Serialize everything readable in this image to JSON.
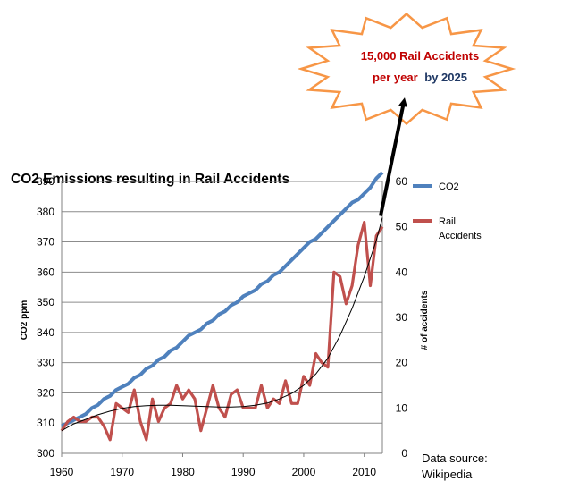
{
  "callout": {
    "line1": "15,000 Rail Accidents",
    "line2_part1": "per year",
    "line2_part2": "by 2025"
  },
  "source_note": {
    "line1": "Data source:",
    "line2": "Wikipedia"
  },
  "colors": {
    "co2": "#4f81bd",
    "accidents": "#c0504d",
    "trend": "#000000",
    "grid": "#8c8c8c",
    "callout_fill": "#ffffff",
    "callout_stroke": "#f79646",
    "callout_red": "#c00000",
    "callout_blue": "#1f3864"
  },
  "chart_data": {
    "type": "line",
    "title": "CO2 Emissions resulting in Rail Accidents",
    "xlabel": "",
    "ylabel": "CO2 ppm",
    "y2label": "# of accidents",
    "xlim": [
      1960,
      2013
    ],
    "ylim": [
      300,
      390
    ],
    "y2lim": [
      0,
      60
    ],
    "xticks": [
      1960,
      1970,
      1980,
      1990,
      2000,
      2010
    ],
    "yticks": [
      300,
      310,
      320,
      330,
      340,
      350,
      360,
      370,
      380,
      390
    ],
    "y2ticks": [
      0,
      10,
      20,
      30,
      40,
      50,
      60
    ],
    "grid": true,
    "legend_position": "right",
    "x": [
      1960,
      1961,
      1962,
      1963,
      1964,
      1965,
      1966,
      1967,
      1968,
      1969,
      1970,
      1971,
      1972,
      1973,
      1974,
      1975,
      1976,
      1977,
      1978,
      1979,
      1980,
      1981,
      1982,
      1983,
      1984,
      1985,
      1986,
      1987,
      1988,
      1989,
      1990,
      1991,
      1992,
      1993,
      1994,
      1995,
      1996,
      1997,
      1998,
      1999,
      2000,
      2001,
      2002,
      2003,
      2004,
      2005,
      2006,
      2007,
      2008,
      2009,
      2010,
      2011,
      2012,
      2013
    ],
    "series": [
      {
        "name": "CO2",
        "axis": "left",
        "values": [
          309,
          310,
          311,
          312,
          313,
          315,
          316,
          318,
          319,
          321,
          322,
          323,
          325,
          326,
          328,
          329,
          331,
          332,
          334,
          335,
          337,
          339,
          340,
          341,
          343,
          344,
          346,
          347,
          349,
          350,
          352,
          353,
          354,
          356,
          357,
          359,
          360,
          362,
          364,
          366,
          368,
          370,
          371,
          373,
          375,
          377,
          379,
          381,
          383,
          384,
          386,
          388,
          391,
          393
        ]
      },
      {
        "name": "Rail Accidents",
        "axis": "right",
        "values": [
          5,
          7,
          8,
          7,
          7,
          8,
          8,
          6,
          3,
          11,
          10,
          9,
          14,
          7,
          3,
          12,
          7,
          10,
          11,
          15,
          12,
          14,
          12,
          5,
          10,
          15,
          10,
          8,
          13,
          14,
          10,
          10,
          10,
          15,
          10,
          12,
          11,
          16,
          11,
          11,
          17,
          15,
          22,
          20,
          19,
          40,
          39,
          33,
          37,
          46,
          51,
          37,
          48,
          50
        ]
      }
    ],
    "trend_line": {
      "axis": "right",
      "x": [
        1960,
        1962,
        1964,
        1966,
        1968,
        1970,
        1972,
        1974,
        1976,
        1978,
        1980,
        1982,
        1984,
        1986,
        1988,
        1990,
        1992,
        1994,
        1996,
        1998,
        2000,
        2002,
        2004,
        2006,
        2008,
        2010,
        2012,
        2013
      ],
      "values": [
        5,
        6.5,
        7.5,
        8.5,
        9.3,
        9.9,
        10.3,
        10.5,
        10.6,
        10.6,
        10.5,
        10.4,
        10.3,
        10.2,
        10.2,
        10.3,
        10.6,
        11.1,
        12,
        13.2,
        15,
        17.5,
        21,
        26,
        32,
        39,
        47,
        52
      ]
    },
    "annotation_arrow": {
      "from": {
        "x": 2013,
        "y2": 52
      },
      "to_label": "callout"
    }
  }
}
